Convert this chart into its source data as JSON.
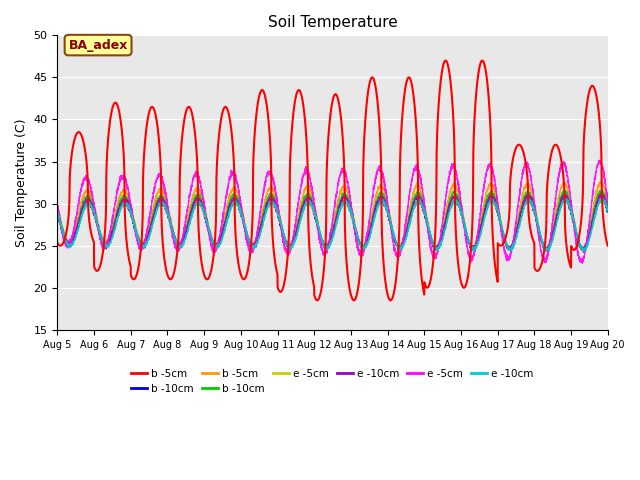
{
  "title": "Soil Temperature",
  "ylabel": "Soil Temperature (C)",
  "ylim": [
    15,
    50
  ],
  "bg_color": "#e8e8e8",
  "annotation_text": "BA_adex",
  "annotation_facecolor": "#ffff99",
  "annotation_edgecolor": "#8B4513",
  "x_tick_labels": [
    "Aug 5",
    "Aug 6",
    "Aug 7",
    "Aug 8",
    "Aug 9",
    "Aug 10",
    "Aug 11",
    "Aug 12",
    "Aug 13",
    "Aug 14",
    "Aug 15",
    "Aug 16",
    "Aug 17",
    "Aug 18",
    "Aug 19",
    "Aug 20"
  ],
  "series": [
    {
      "label": "b -5cm",
      "color": "#ff0000",
      "lw": 1.5
    },
    {
      "label": "b -10cm",
      "color": "#0000dd",
      "lw": 1.0
    },
    {
      "label": "b -5cm",
      "color": "#ff9900",
      "lw": 1.0
    },
    {
      "label": "b -10cm",
      "color": "#00cc00",
      "lw": 1.0
    },
    {
      "label": "e -5cm",
      "color": "#cccc00",
      "lw": 1.0
    },
    {
      "label": "e -10cm",
      "color": "#9900cc",
      "lw": 1.0
    },
    {
      "label": "e -5cm",
      "color": "#ff00ff",
      "lw": 1.0
    },
    {
      "label": "e -10cm",
      "color": "#00cccc",
      "lw": 1.0
    }
  ]
}
